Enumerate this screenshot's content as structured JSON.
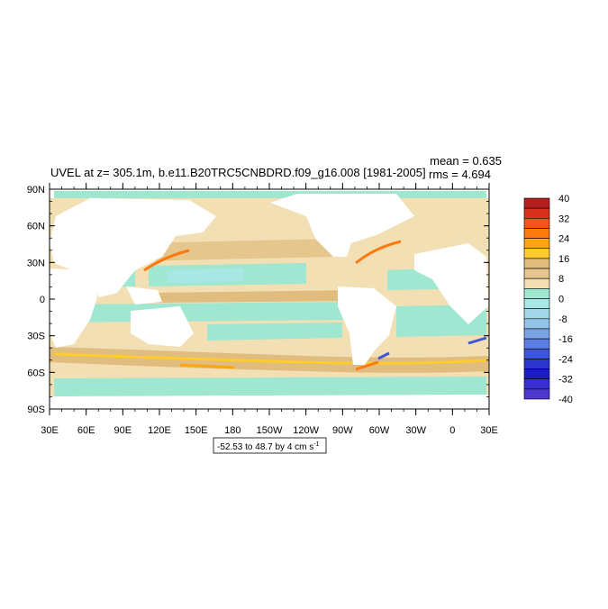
{
  "title": "UVEL at z= 305.1m, b.e11.B20TRC5CNBDRD.f09_g16.008 [1981-2005]",
  "stats": {
    "mean": "mean = 0.635",
    "rms": "rms = 4.694"
  },
  "lat_labels": [
    "90N",
    "60N",
    "30N",
    "0",
    "30S",
    "60S",
    "90S"
  ],
  "lon_labels": [
    "30E",
    "60E",
    "90E",
    "120E",
    "150E",
    "180",
    "150W",
    "120W",
    "90W",
    "60W",
    "30W",
    "0",
    "30E"
  ],
  "range_label": {
    "text": "-52.53 to 48.7 by 4 cm s",
    "exp": "-1"
  },
  "colorbar": {
    "labels": [
      "40",
      "32",
      "24",
      "16",
      "8",
      "0",
      "-8",
      "-16",
      "-24",
      "-32",
      "-40"
    ],
    "colors": [
      "#b2201f",
      "#d7301f",
      "#f4541c",
      "#fc7a0e",
      "#fda50f",
      "#fecc2e",
      "#e0bc7e",
      "#e6c48f",
      "#f2dfb4",
      "#9fe7d0",
      "#a8e8e4",
      "#a3d8e8",
      "#93c4e8",
      "#7aa3e6",
      "#5d7ee2",
      "#3d55d6",
      "#2c35cc",
      "#1d1dc4",
      "#3a2fcf",
      "#4b37cc"
    ]
  },
  "map_colors": {
    "ocean_pos": "#f2dfb4",
    "ocean_neg": "#9fe7d0",
    "land": "#ffffff"
  }
}
